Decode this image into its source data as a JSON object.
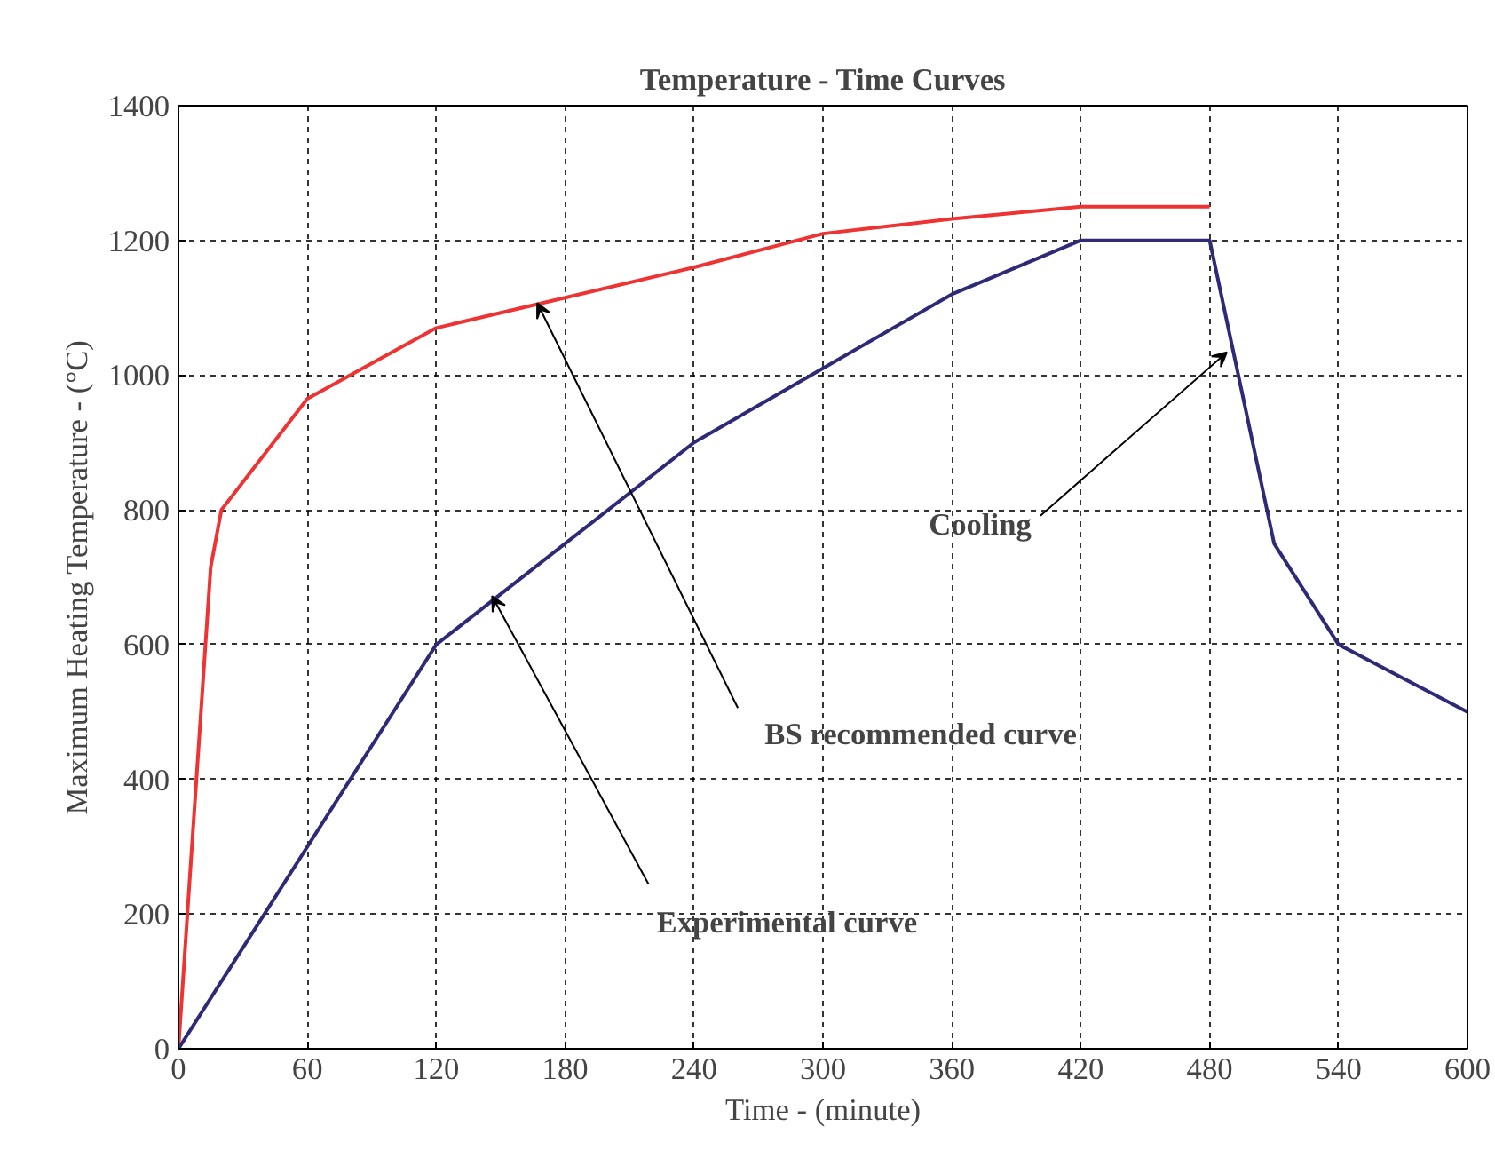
{
  "chart_data": {
    "type": "line",
    "title": "Temperature - Time Curves",
    "xlabel": "Time - (minute)",
    "ylabel": "Maximum Heating Temperature - (°C)",
    "xlim": [
      0,
      600
    ],
    "xticks": [
      0,
      60,
      120,
      180,
      240,
      300,
      360,
      420,
      480,
      540,
      600
    ],
    "ylim": [
      0,
      1400
    ],
    "yticks": [
      0,
      200,
      400,
      600,
      800,
      1000,
      1200,
      1400
    ],
    "grid": true,
    "marker": "none",
    "line_style": "solid",
    "series": [
      {
        "color": "#ee3333",
        "x": [
          0,
          5,
          15,
          20,
          60,
          120,
          180,
          240,
          300,
          360,
          420,
          480
        ],
        "values": [
          0,
          240,
          715,
          800,
          965,
          1070,
          1115,
          1160,
          1210,
          1232,
          1250,
          1250
        ]
      },
      {
        "color": "#2e2a78",
        "x": [
          0,
          120,
          240,
          300,
          360,
          420,
          480,
          510,
          540,
          600
        ],
        "values": [
          0,
          600,
          900,
          1010,
          1120,
          1200,
          1200,
          750,
          600,
          500
        ]
      }
    ],
    "annotations": [
      {
        "text": "Cooling",
        "x": 488,
        "y": 1034
      },
      {
        "text": "BS recommended curve",
        "x": 167,
        "y": 1107
      },
      {
        "text": "Experimental curve",
        "x": 146,
        "y": 672
      }
    ]
  }
}
